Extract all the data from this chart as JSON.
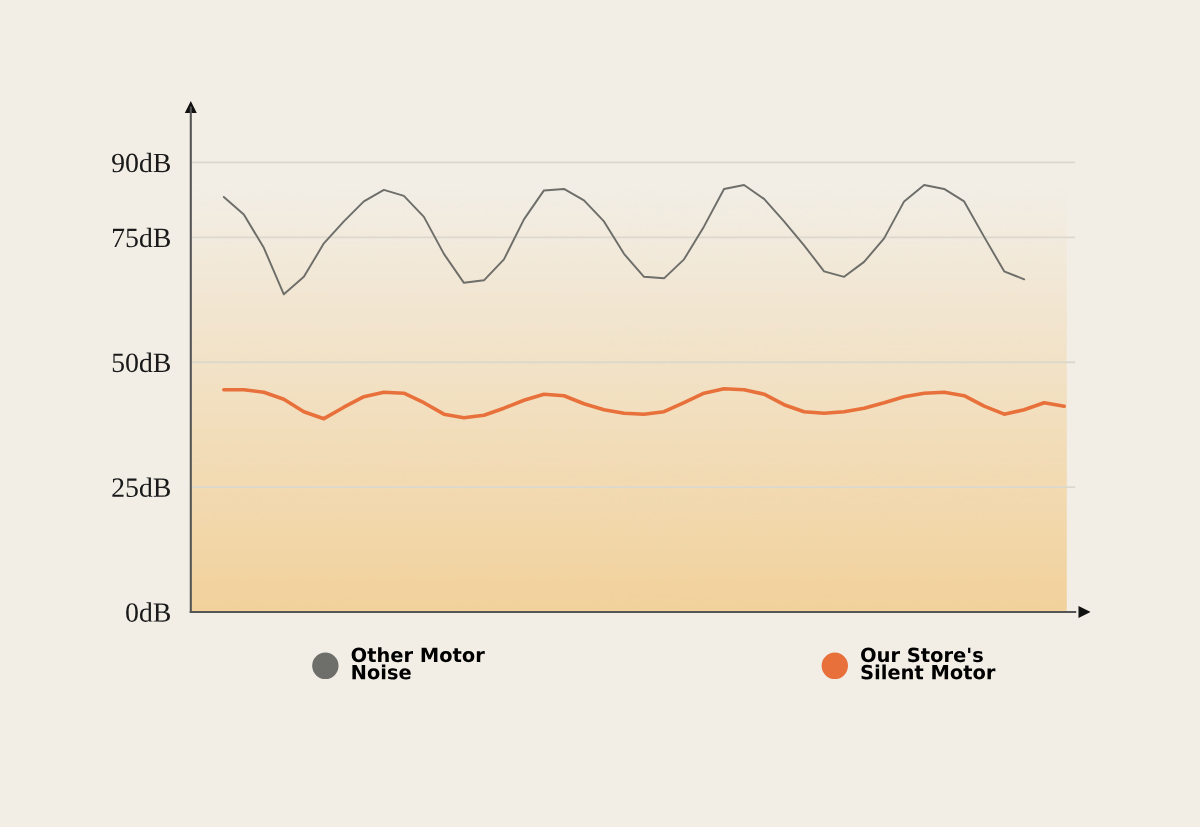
{
  "chart_data": {
    "type": "line",
    "categories": [
      null,
      null,
      null,
      null,
      null,
      null,
      null,
      null,
      null,
      null,
      null,
      null,
      null,
      null,
      null,
      null,
      null,
      null,
      null,
      null,
      null,
      null,
      null,
      null,
      null,
      null,
      null,
      null,
      null,
      null,
      null,
      null,
      null,
      null,
      null,
      null,
      null,
      null,
      null,
      null,
      null,
      null,
      null
    ],
    "series": [
      {
        "name": "Other Motor Noise",
        "color": "#6e6e6a",
        "values": [
          83.1,
          79.6,
          72.9,
          63.6,
          67.1,
          73.8,
          78.2,
          82.2,
          84.5,
          83.3,
          79.1,
          71.7,
          65.9,
          66.4,
          70.6,
          78.6,
          84.4,
          84.7,
          82.4,
          78.2,
          71.7,
          67.1,
          66.8,
          70.6,
          77.2,
          84.7,
          85.5,
          82.7,
          78.2,
          73.4,
          68.2,
          67.1,
          70.1,
          74.8,
          82.2,
          85.5,
          84.7,
          82.2,
          75.1,
          68.2,
          66.6,
          null,
          null
        ]
      },
      {
        "name": "Our Store's Silent Motor",
        "color": "#e8703a",
        "values": [
          44.5,
          44.5,
          44.0,
          42.6,
          40.1,
          38.7,
          41.0,
          43.1,
          44.0,
          43.8,
          41.9,
          39.6,
          38.9,
          39.4,
          40.8,
          42.4,
          43.6,
          43.3,
          41.7,
          40.5,
          39.8,
          39.6,
          40.1,
          41.9,
          43.8,
          44.7,
          44.5,
          43.6,
          41.5,
          40.1,
          39.8,
          40.1,
          40.8,
          41.9,
          43.1,
          43.8,
          44.0,
          43.3,
          41.2,
          39.6,
          40.5,
          41.9,
          41.2
        ]
      }
    ],
    "ylim": [
      0,
      101
    ],
    "yticks": [
      {
        "value": 0,
        "label": "0dB"
      },
      {
        "value": 25,
        "label": "25dB"
      },
      {
        "value": 50,
        "label": "50dB"
      },
      {
        "value": 75,
        "label": "75dB"
      },
      {
        "value": 90,
        "label": "90dB"
      }
    ],
    "grid": "y",
    "legend": "bottom",
    "marker": "none",
    "line_style": "solid"
  }
}
